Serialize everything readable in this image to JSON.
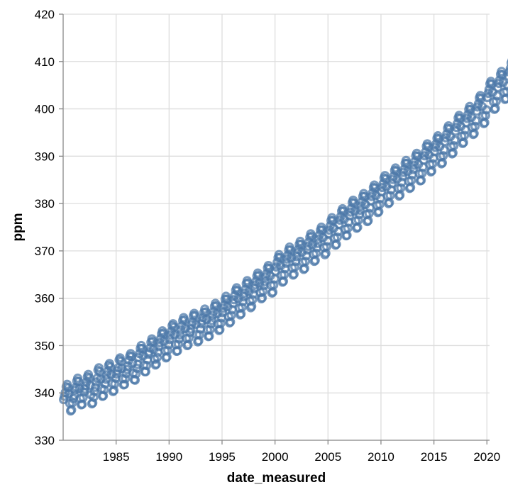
{
  "chart_data": {
    "type": "scatter",
    "title": "",
    "xlabel": "date_measured",
    "ylabel": "ppm",
    "xlim": [
      "1980-01-01",
      "2020-04-01"
    ],
    "ylim": [
      330,
      420
    ],
    "x_ticks": [
      "1985",
      "1990",
      "1995",
      "2000",
      "2005",
      "2010",
      "2015",
      "2020"
    ],
    "y_ticks": [
      "330",
      "340",
      "350",
      "360",
      "370",
      "380",
      "390",
      "400",
      "410",
      "420"
    ],
    "grid": true,
    "marker": "open-circle",
    "series": [
      {
        "color": "#4c78a8",
        "x_start": "1980-01",
        "x_step": "1 month",
        "values": [
          338.6,
          339.3,
          340.1,
          341.3,
          341.8,
          341.1,
          339.8,
          337.8,
          336.2,
          336.4,
          337.9,
          338.8,
          339.5,
          340.6,
          341.2,
          342.5,
          343.1,
          342.4,
          340.9,
          338.8,
          337.5,
          337.6,
          339.0,
          340.2,
          340.8,
          341.5,
          342.3,
          343.4,
          343.9,
          343.2,
          341.6,
          339.6,
          337.7,
          337.9,
          339.1,
          340.3,
          341.2,
          342.3,
          343.1,
          344.8,
          345.3,
          344.5,
          342.9,
          340.9,
          339.3,
          339.4,
          340.7,
          341.9,
          342.9,
          343.8,
          344.6,
          345.8,
          346.2,
          345.5,
          343.9,
          342.0,
          340.3,
          340.5,
          341.9,
          343.1,
          344.0,
          344.7,
          345.3,
          347.0,
          347.4,
          346.7,
          345.2,
          343.0,
          341.7,
          341.8,
          343.0,
          344.1,
          344.9,
          345.7,
          346.9,
          347.8,
          348.3,
          347.7,
          346.3,
          344.2,
          342.8,
          342.7,
          344.0,
          345.2,
          346.0,
          347.5,
          348.3,
          349.4,
          350.0,
          349.4,
          347.8,
          345.9,
          344.5,
          344.5,
          345.8,
          347.0,
          348.2,
          348.7,
          349.5,
          350.7,
          351.4,
          350.9,
          349.2,
          347.1,
          345.9,
          346.1,
          347.5,
          348.6,
          349.8,
          350.6,
          351.5,
          352.5,
          353.1,
          352.6,
          350.9,
          348.9,
          347.4,
          347.6,
          349.0,
          350.2,
          351.3,
          352.2,
          353.0,
          354.2,
          354.6,
          353.9,
          352.3,
          350.2,
          348.8,
          348.9,
          350.3,
          351.4,
          352.3,
          353.3,
          354.2,
          355.3,
          355.9,
          355.4,
          353.6,
          351.5,
          350.0,
          350.2,
          351.6,
          352.8,
          353.5,
          354.4,
          355.0,
          356.3,
          356.8,
          356.3,
          354.5,
          352.3,
          350.8,
          351.0,
          352.3,
          353.5,
          354.6,
          355.2,
          355.9,
          357.0,
          357.7,
          357.1,
          355.5,
          353.3,
          351.9,
          352.0,
          353.4,
          354.6,
          355.3,
          356.4,
          357.2,
          358.3,
          358.9,
          358.4,
          356.7,
          354.6,
          353.2,
          353.4,
          354.7,
          355.9,
          357.0,
          357.9,
          358.6,
          359.8,
          360.4,
          359.8,
          358.2,
          356.1,
          354.8,
          355.0,
          356.4,
          357.6,
          358.9,
          359.7,
          360.6,
          361.7,
          362.2,
          361.6,
          359.9,
          357.9,
          356.5,
          356.7,
          358.1,
          359.3,
          360.3,
          361.1,
          361.9,
          363.1,
          363.7,
          363.2,
          361.4,
          359.4,
          358.0,
          358.3,
          359.7,
          360.9,
          362.0,
          362.8,
          363.6,
          364.7,
          365.3,
          364.8,
          363.2,
          361.2,
          359.9,
          360.1,
          361.5,
          362.7,
          363.5,
          364.5,
          365.2,
          366.4,
          366.9,
          366.3,
          364.7,
          362.7,
          361.1,
          361.3,
          362.8,
          364.1,
          365.7,
          366.6,
          367.6,
          368.6,
          369.2,
          368.6,
          366.9,
          364.9,
          363.4,
          363.6,
          365.0,
          366.3,
          367.4,
          368.3,
          369.1,
          370.2,
          370.8,
          370.2,
          368.5,
          366.4,
          364.9,
          365.1,
          366.6,
          367.8,
          368.8,
          369.6,
          370.3,
          371.4,
          372.0,
          371.4,
          369.7,
          367.6,
          366.1,
          366.3,
          367.8,
          369.0,
          370.2,
          371.0,
          371.9,
          372.9,
          373.6,
          373.1,
          371.3,
          369.3,
          367.8,
          368.0,
          369.5,
          370.7,
          371.6,
          372.5,
          373.4,
          374.4,
          375.0,
          374.4,
          372.8,
          370.7,
          369.2,
          369.5,
          370.9,
          372.1,
          373.6,
          374.4,
          375.3,
          376.4,
          377.0,
          376.4,
          374.8,
          372.7,
          371.2,
          371.4,
          372.9,
          374.1,
          375.6,
          376.5,
          377.3,
          378.4,
          378.9,
          378.4,
          376.7,
          374.6,
          373.2,
          373.3,
          374.8,
          376.1,
          377.4,
          378.2,
          379.0,
          380.2,
          380.7,
          380.1,
          378.4,
          376.3,
          374.8,
          375.0,
          376.5,
          377.7,
          378.6,
          379.5,
          380.4,
          381.5,
          382.1,
          381.5,
          379.8,
          377.7,
          376.2,
          376.4,
          377.9,
          379.1,
          380.6,
          381.5,
          382.3,
          383.4,
          383.9,
          383.3,
          381.7,
          379.6,
          378.1,
          378.3,
          379.8,
          381.1,
          382.5,
          383.4,
          384.2,
          385.4,
          385.9,
          385.2,
          383.6,
          381.6,
          380.0,
          380.2,
          381.7,
          382.9,
          384.2,
          385.1,
          385.8,
          387.0,
          387.5,
          386.9,
          385.2,
          383.2,
          381.6,
          381.8,
          383.3,
          384.5,
          385.7,
          386.6,
          387.3,
          388.5,
          389.1,
          388.5,
          386.8,
          384.7,
          383.2,
          383.4,
          384.9,
          386.1,
          387.2,
          388.1,
          388.9,
          390.1,
          390.6,
          390.0,
          388.3,
          386.3,
          384.8,
          384.9,
          386.4,
          387.7,
          389.2,
          390.1,
          390.9,
          392.1,
          392.6,
          392.0,
          390.3,
          388.2,
          386.7,
          386.9,
          388.4,
          389.6,
          391.0,
          391.9,
          392.6,
          393.8,
          394.3,
          393.7,
          392.0,
          389.9,
          388.4,
          388.6,
          390.1,
          391.3,
          393.1,
          393.9,
          394.7,
          395.9,
          396.4,
          395.8,
          394.1,
          392.0,
          390.5,
          390.7,
          392.2,
          393.4,
          395.3,
          396.1,
          396.9,
          398.1,
          398.6,
          398.0,
          396.3,
          394.2,
          392.7,
          392.9,
          394.4,
          395.6,
          397.1,
          398.0,
          398.8,
          399.9,
          400.5,
          399.9,
          398.2,
          396.1,
          394.6,
          394.8,
          396.3,
          397.5,
          399.5,
          400.4,
          401.1,
          402.3,
          402.8,
          402.2,
          400.5,
          398.5,
          396.9,
          397.1,
          398.6,
          399.8,
          402.4,
          403.3,
          404.1,
          405.3,
          405.8,
          405.2,
          403.5,
          401.5,
          399.9,
          400.1,
          401.6,
          402.8,
          404.5,
          405.4,
          406.1,
          407.3,
          407.9,
          407.2,
          405.6,
          403.5,
          402.0,
          402.2,
          403.7,
          404.9,
          406.9,
          407.8,
          408.5,
          409.7,
          410.2,
          409.6,
          407.9,
          405.9,
          404.4,
          404.6,
          406.1,
          407.3,
          409.5,
          410.3,
          411.1,
          412.3,
          412.8,
          412.2,
          410.5,
          408.5,
          407.0,
          407.1,
          408.6,
          409.9,
          412.0,
          412.9,
          413.7
        ]
      }
    ]
  }
}
